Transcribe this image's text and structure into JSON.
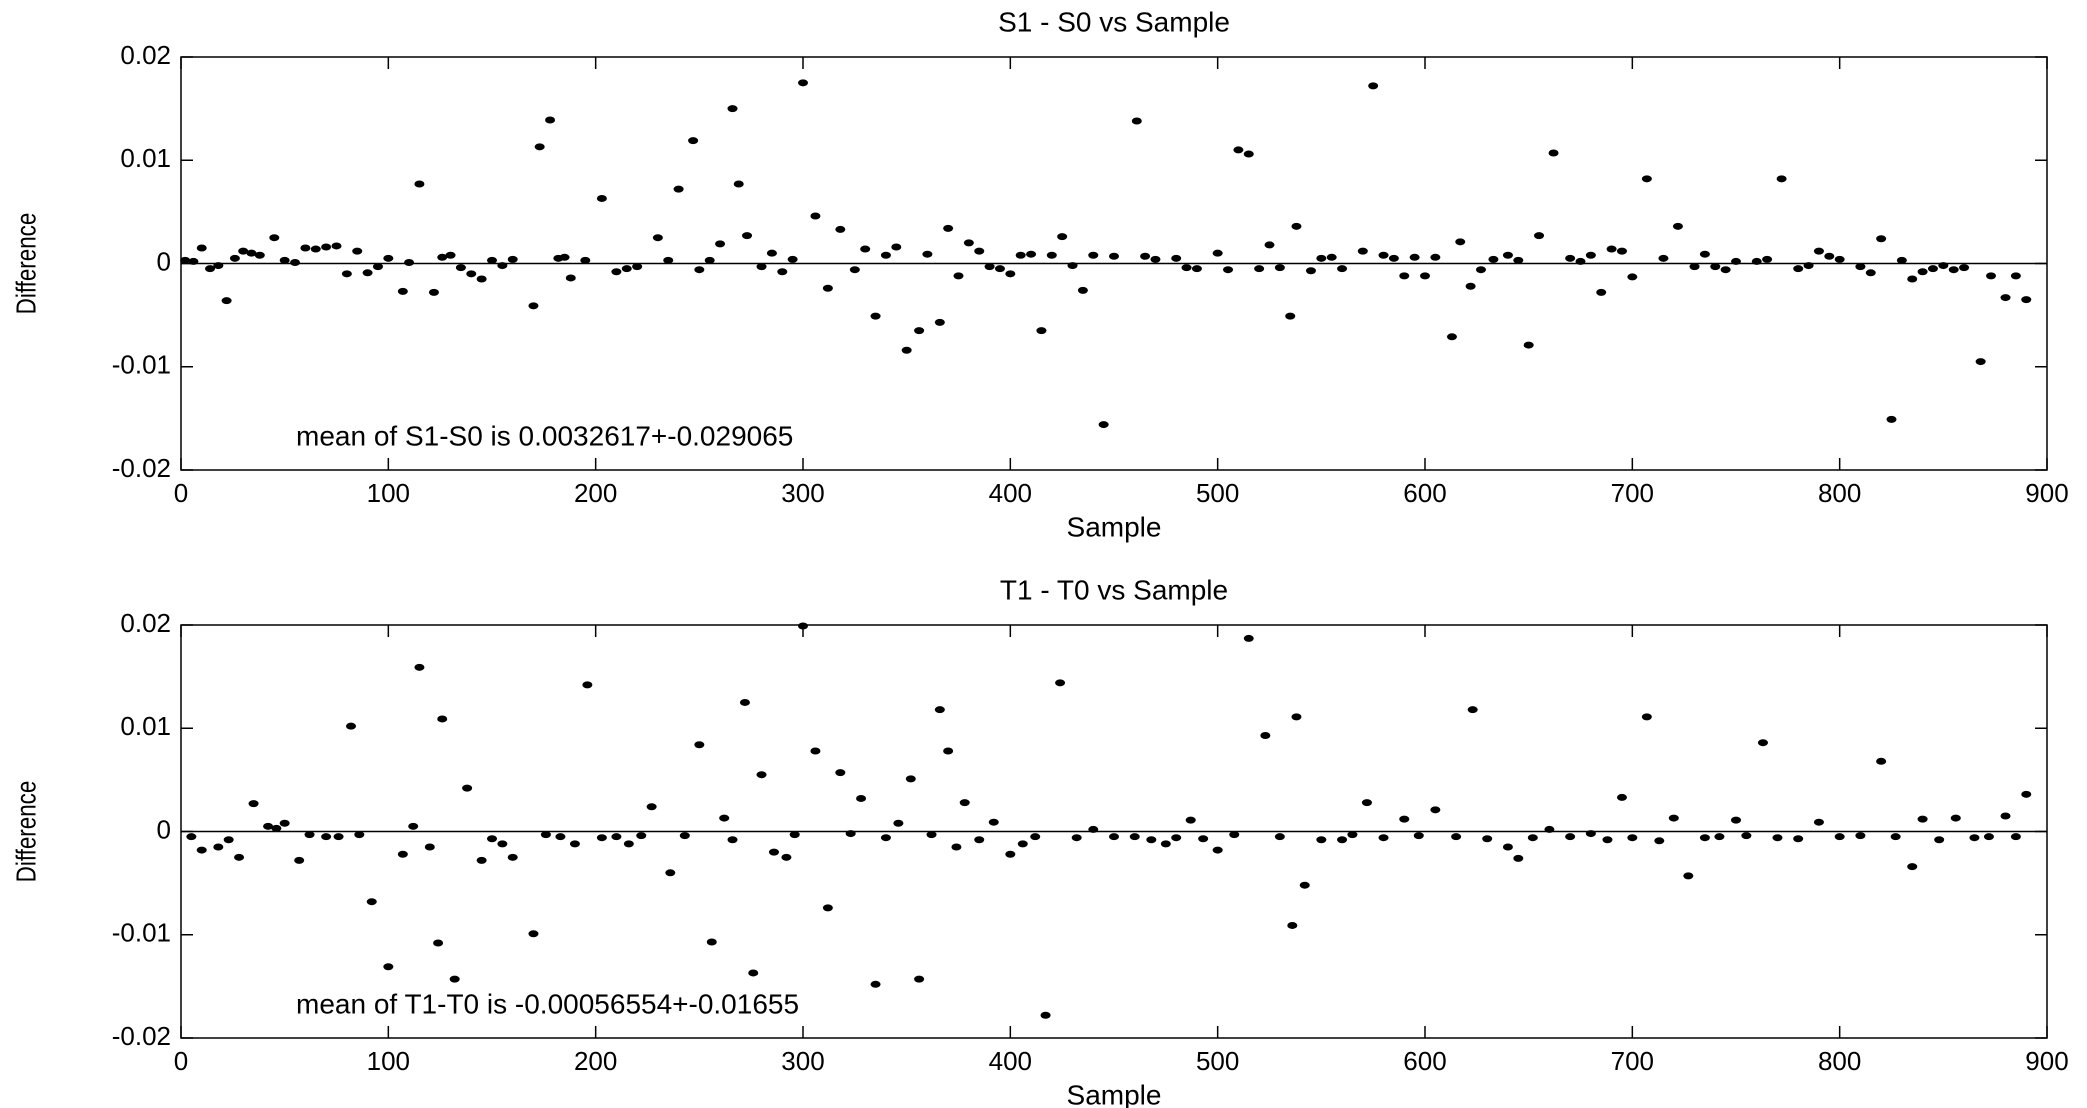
{
  "chart_data": [
    {
      "type": "scatter",
      "title": "S1 - S0 vs Sample",
      "xlabel": "Sample",
      "ylabel": "Difference",
      "annotation": "mean  of S1-S0 is 0.0032617+-0.029065",
      "color": "#000000",
      "xlim": [
        0,
        900
      ],
      "xticks": [
        0,
        100,
        200,
        300,
        400,
        500,
        600,
        700,
        800,
        900
      ],
      "ylim": [
        -0.02,
        0.02
      ],
      "yticks": [
        -0.02,
        -0.01,
        0,
        0.01,
        0.02
      ],
      "x": [
        2,
        6,
        10,
        14,
        18,
        22,
        26,
        30,
        34,
        38,
        45,
        50,
        55,
        60,
        65,
        70,
        75,
        80,
        85,
        90,
        95,
        100,
        107,
        110,
        115,
        122,
        126,
        130,
        135,
        140,
        145,
        150,
        155,
        160,
        170,
        173,
        178,
        182,
        185,
        188,
        195,
        203,
        210,
        215,
        220,
        230,
        235,
        240,
        247,
        250,
        255,
        260,
        266,
        269,
        273,
        280,
        285,
        290,
        295,
        300,
        306,
        312,
        318,
        325,
        330,
        335,
        340,
        345,
        350,
        356,
        360,
        366,
        370,
        375,
        380,
        385,
        390,
        395,
        400,
        405,
        410,
        415,
        420,
        425,
        430,
        435,
        440,
        445,
        450,
        461,
        465,
        470,
        480,
        485,
        490,
        500,
        505,
        510,
        515,
        520,
        525,
        530,
        535,
        538,
        545,
        550,
        555,
        560,
        570,
        575,
        580,
        585,
        590,
        595,
        600,
        605,
        613,
        617,
        622,
        627,
        633,
        640,
        645,
        650,
        655,
        662,
        670,
        675,
        680,
        685,
        690,
        695,
        700,
        707,
        715,
        722,
        730,
        735,
        740,
        745,
        750,
        760,
        765,
        772,
        780,
        785,
        790,
        795,
        800,
        810,
        815,
        820,
        825,
        830,
        835,
        840,
        845,
        850,
        855,
        860,
        868,
        873,
        880,
        885,
        890
      ],
      "values": [
        0.0003,
        0.0002,
        0.0015,
        -0.0005,
        -0.0002,
        -0.0036,
        0.0005,
        0.0012,
        0.001,
        0.0008,
        0.0025,
        0.0003,
        0.0001,
        0.0015,
        0.0014,
        0.0016,
        0.0017,
        -0.001,
        0.0012,
        -0.0009,
        -0.0003,
        0.0005,
        -0.0027,
        0.0001,
        0.0077,
        -0.0028,
        0.0006,
        0.0008,
        -0.0004,
        -0.001,
        -0.0015,
        0.0003,
        -0.0002,
        0.0004,
        -0.0041,
        0.0113,
        0.0139,
        0.0005,
        0.0006,
        -0.0014,
        0.0003,
        0.0063,
        -0.0008,
        -0.0005,
        -0.0003,
        0.0025,
        0.0003,
        0.0072,
        0.0119,
        -0.0006,
        0.0003,
        0.0019,
        0.015,
        0.0077,
        0.0027,
        -0.0003,
        0.001,
        -0.0008,
        0.0004,
        0.0175,
        0.0046,
        -0.0024,
        0.0033,
        -0.0006,
        0.0014,
        -0.0051,
        0.0008,
        0.0016,
        -0.0084,
        -0.0065,
        0.0009,
        -0.0057,
        0.0034,
        -0.0012,
        0.002,
        0.0012,
        -0.0003,
        -0.0005,
        -0.001,
        0.0008,
        0.0009,
        -0.0065,
        0.0008,
        0.0026,
        -0.0002,
        -0.0026,
        0.0008,
        -0.0156,
        0.0007,
        0.0138,
        0.0007,
        0.0004,
        0.0005,
        -0.0004,
        -0.0005,
        0.001,
        -0.0006,
        0.011,
        0.0106,
        -0.0005,
        0.0018,
        -0.0004,
        -0.0051,
        0.0036,
        -0.0007,
        0.0005,
        0.0006,
        -0.0005,
        0.0012,
        0.0172,
        0.0008,
        0.0005,
        -0.0012,
        0.0006,
        -0.0012,
        0.0006,
        -0.0071,
        0.0021,
        -0.0022,
        -0.0006,
        0.0004,
        0.0008,
        0.0003,
        -0.0079,
        0.0027,
        0.0107,
        0.0005,
        0.0002,
        0.0008,
        -0.0028,
        0.0014,
        0.0012,
        -0.0013,
        0.0082,
        0.0005,
        0.0036,
        -0.0003,
        0.0009,
        -0.0003,
        -0.0006,
        0.0002,
        0.0002,
        0.0004,
        0.0082,
        -0.0005,
        -0.0002,
        0.0012,
        0.0007,
        0.0004,
        -0.0003,
        -0.0009,
        0.0024,
        -0.0151,
        0.0003,
        -0.0015,
        -0.0008,
        -0.0005,
        -0.0002,
        -0.0006,
        -0.0004,
        -0.0095,
        -0.0012,
        -0.0033,
        -0.0012,
        -0.0035
      ]
    },
    {
      "type": "scatter",
      "title": "T1 - T0 vs Sample",
      "xlabel": "Sample",
      "ylabel": "Difference",
      "annotation": "mean  of T1-T0 is -0.00056554+-0.01655",
      "color": "#000000",
      "xlim": [
        0,
        900
      ],
      "xticks": [
        0,
        100,
        200,
        300,
        400,
        500,
        600,
        700,
        800,
        900
      ],
      "ylim": [
        -0.02,
        0.02
      ],
      "yticks": [
        -0.02,
        -0.01,
        0,
        0.01,
        0.02
      ],
      "x": [
        5,
        10,
        18,
        23,
        28,
        35,
        42,
        46,
        50,
        57,
        62,
        70,
        76,
        82,
        86,
        92,
        100,
        107,
        112,
        115,
        120,
        124,
        126,
        132,
        138,
        145,
        150,
        155,
        160,
        170,
        176,
        183,
        190,
        196,
        203,
        210,
        216,
        222,
        227,
        236,
        243,
        250,
        256,
        262,
        266,
        272,
        276,
        280,
        286,
        292,
        296,
        300,
        306,
        312,
        318,
        323,
        328,
        335,
        340,
        346,
        352,
        356,
        362,
        366,
        370,
        374,
        378,
        385,
        392,
        400,
        406,
        412,
        417,
        424,
        432,
        440,
        450,
        460,
        468,
        475,
        480,
        487,
        493,
        500,
        508,
        515,
        523,
        530,
        536,
        538,
        542,
        550,
        560,
        565,
        572,
        580,
        590,
        597,
        605,
        615,
        623,
        630,
        640,
        645,
        652,
        660,
        670,
        680,
        688,
        695,
        700,
        707,
        713,
        720,
        727,
        735,
        742,
        750,
        755,
        763,
        770,
        780,
        790,
        800,
        810,
        820,
        827,
        835,
        840,
        848,
        856,
        865,
        872,
        880,
        885,
        890
      ],
      "values": [
        -0.0005,
        -0.0018,
        -0.0015,
        -0.0008,
        -0.0025,
        0.0027,
        0.0005,
        0.0003,
        0.0008,
        -0.0028,
        -0.0003,
        -0.0005,
        -0.0005,
        0.0102,
        -0.0003,
        -0.0068,
        -0.0131,
        -0.0022,
        0.0005,
        0.0159,
        -0.0015,
        -0.0108,
        0.0109,
        -0.0143,
        0.0042,
        -0.0028,
        -0.0007,
        -0.0012,
        -0.0025,
        -0.0099,
        -0.0003,
        -0.0005,
        -0.0012,
        0.0142,
        -0.0006,
        -0.0005,
        -0.0012,
        -0.0004,
        0.0024,
        -0.004,
        -0.0004,
        0.0084,
        -0.0107,
        0.0013,
        -0.0008,
        0.0125,
        -0.0137,
        0.0055,
        -0.002,
        -0.0025,
        -0.0003,
        0.0199,
        0.0078,
        -0.0074,
        0.0057,
        -0.0002,
        0.0032,
        -0.0148,
        -0.0006,
        0.0008,
        0.0051,
        -0.0143,
        -0.0003,
        0.0118,
        0.0078,
        -0.0015,
        0.0028,
        -0.0008,
        0.0009,
        -0.0022,
        -0.0012,
        -0.0005,
        -0.0178,
        0.0144,
        -0.0006,
        0.0002,
        -0.0005,
        -0.0005,
        -0.0008,
        -0.0012,
        -0.0006,
        0.0011,
        -0.0007,
        -0.0018,
        -0.0003,
        0.0187,
        0.0093,
        -0.0005,
        -0.0091,
        0.0111,
        -0.0052,
        -0.0008,
        -0.0008,
        -0.0003,
        0.0028,
        -0.0006,
        0.0012,
        -0.0004,
        0.0021,
        -0.0005,
        0.0118,
        -0.0007,
        -0.0015,
        -0.0026,
        -0.0006,
        0.0002,
        -0.0005,
        -0.0002,
        -0.0008,
        0.0033,
        -0.0006,
        0.0111,
        -0.0009,
        0.0013,
        -0.0043,
        -0.0006,
        -0.0005,
        0.0011,
        -0.0004,
        0.0086,
        -0.0006,
        -0.0007,
        0.0009,
        -0.0005,
        -0.0004,
        0.0068,
        -0.0005,
        -0.0034,
        0.0012,
        -0.0008,
        0.0013,
        -0.0006,
        -0.0005,
        0.0015,
        -0.0005,
        0.0036
      ]
    }
  ]
}
